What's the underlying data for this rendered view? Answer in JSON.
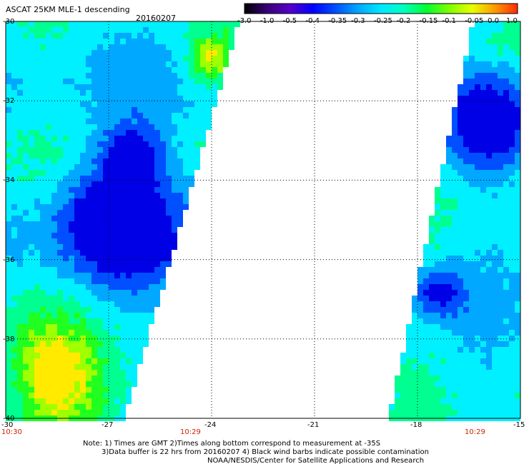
{
  "header": {
    "title": "ASCAT 25KM MLE-1 descending",
    "date": "20160207"
  },
  "colorbar": {
    "labels": [
      "-3.0",
      "-1.0",
      "-0.5",
      "-0.4",
      "-0.35",
      "-0.3",
      "-0.25",
      "-0.2",
      "-0.15",
      "-0.1",
      "-0.05",
      "0.0",
      "1.0"
    ],
    "colors": [
      "#000000",
      "#3a0078",
      "#5500c8",
      "#0000ff",
      "#0050ff",
      "#00a8ff",
      "#00e8ff",
      "#00ffc0",
      "#00ff30",
      "#80ff00",
      "#e8ff00",
      "#ff9a00",
      "#ff2a00"
    ]
  },
  "axes": {
    "y_labels": [
      "-30",
      "-32",
      "-34",
      "-36",
      "-38",
      "-40"
    ],
    "x_labels": [
      "-30",
      "-27",
      "-24",
      "-21",
      "-18",
      "-15"
    ],
    "lat_range": [
      -40,
      -30
    ],
    "lon_range": [
      -30,
      -15
    ]
  },
  "times": {
    "left": "10:30",
    "middle": "10:29",
    "right": "10:29"
  },
  "notes": {
    "line1": "Note: 1) Times are GMT 2)Times along bottom correspond to measurement at -35S",
    "line2": "3)Data buffer is 22 hrs from 20160207 4) Black wind barbs indicate possible contamination",
    "line3": "NOAA/NESDIS/Center for Satellite Applications and Research"
  }
}
